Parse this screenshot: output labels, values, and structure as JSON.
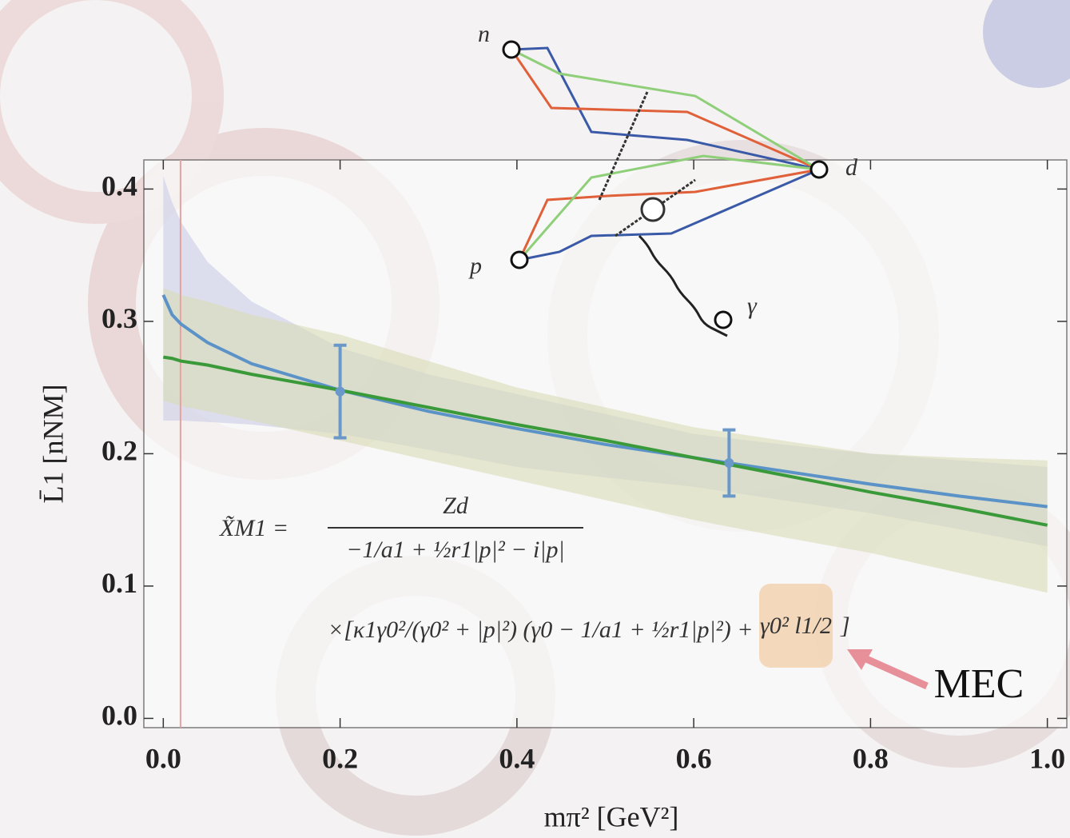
{
  "chart_data": {
    "type": "line",
    "xlabel": "mπ² [GeV²]",
    "ylabel": "L̄1 [nNM]",
    "xlim": [
      -0.022,
      1.022
    ],
    "ylim": [
      -0.007,
      0.422
    ],
    "xticks": [
      {
        "value": 0,
        "label": "0.0"
      },
      0.2,
      0.4,
      0.6,
      0.8,
      {
        "value": 1,
        "label": "1.0"
      }
    ],
    "yticks": [
      {
        "value": 0,
        "label": "0.0"
      },
      0.1,
      0.2,
      0.3,
      0.4
    ],
    "x": [
      0,
      0.01,
      0.02,
      0.05,
      0.1,
      0.2,
      0.3,
      0.4,
      0.5,
      0.6,
      0.7,
      0.8,
      0.9,
      1.0
    ],
    "bands": [
      {
        "color": "#c9cde6",
        "upper": [
          0.41,
          0.39,
          0.375,
          0.345,
          0.315,
          0.28,
          0.26,
          0.245,
          0.23,
          0.215,
          0.207,
          0.2,
          0.195,
          0.19
        ],
        "lower": [
          0.225,
          0.225,
          0.225,
          0.224,
          0.222,
          0.215,
          0.203,
          0.19,
          0.182,
          0.175,
          0.165,
          0.155,
          0.143,
          0.13
        ]
      },
      {
        "color": "#d9dcb5",
        "upper": [
          0.325,
          0.323,
          0.32,
          0.315,
          0.305,
          0.29,
          0.27,
          0.25,
          0.235,
          0.22,
          0.21,
          0.2,
          0.197,
          0.195
        ],
        "lower": [
          0.24,
          0.238,
          0.236,
          0.232,
          0.225,
          0.21,
          0.195,
          0.18,
          0.165,
          0.15,
          0.137,
          0.125,
          0.11,
          0.095
        ]
      }
    ],
    "series": [
      {
        "color": "#5b93c8",
        "values": [
          0.32,
          0.305,
          0.298,
          0.284,
          0.268,
          0.248,
          0.232,
          0.219,
          0.207,
          0.197,
          0.187,
          0.177,
          0.168,
          0.16
        ]
      },
      {
        "color": "#3a9a3a",
        "values": [
          0.273,
          0.272,
          0.27,
          0.267,
          0.26,
          0.248,
          0.235,
          0.222,
          0.21,
          0.197,
          0.184,
          0.171,
          0.159,
          0.146
        ]
      }
    ],
    "points": {
      "color": "#6a98c8",
      "x": [
        0.2,
        0.64
      ],
      "values": [
        0.247,
        0.193
      ],
      "errors": [
        0.035,
        0.025
      ]
    },
    "reference_x": 0.0195,
    "reference_color": "#e8a0a0"
  },
  "formula": {
    "lhs": "X̃M1 =",
    "numerator": "Zd",
    "denominator": "−1/a1 + ½r1|p|² − i|p|",
    "line2": "×[κ1γ0²/(γ0² + |p|²) (γ0 − 1/a1 + ½r1|p|²) +",
    "mec_term": "γ0² l1/2",
    "close": "]"
  },
  "annotation": "MEC",
  "diagram": {
    "labels": [
      "n",
      "p",
      "d",
      "γ"
    ]
  }
}
